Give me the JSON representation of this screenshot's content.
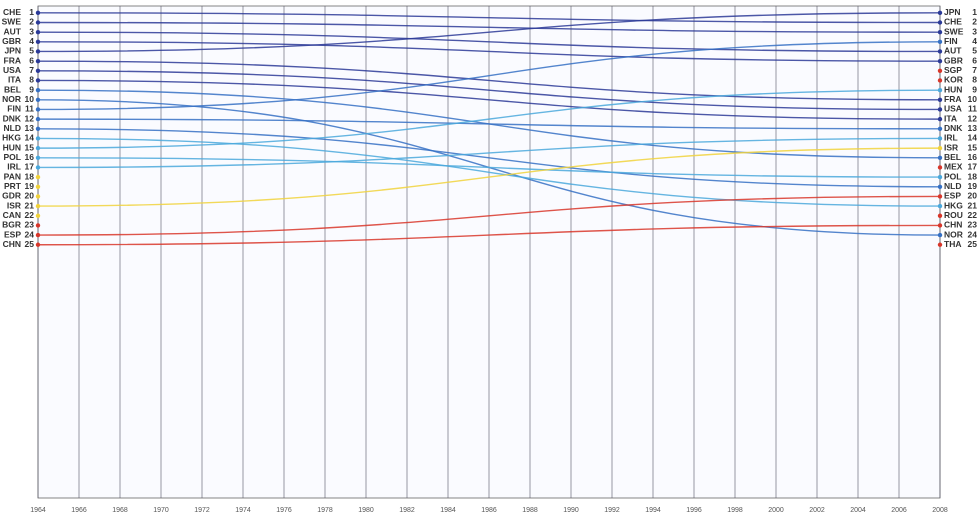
{
  "chart_data": {
    "type": "bump",
    "x": [
      1964,
      2008
    ],
    "xlim": [
      1964,
      2008
    ],
    "xticks": [
      1964,
      1966,
      1968,
      1970,
      1972,
      1974,
      1976,
      1978,
      1980,
      1982,
      1984,
      1986,
      1988,
      1990,
      1992,
      1994,
      1996,
      1998,
      2000,
      2002,
      2004,
      2006,
      2008
    ],
    "ylim": [
      0.5,
      51
    ],
    "series": [
      {
        "name": "CHE",
        "color": "#2b3a98",
        "values": [
          1,
          2
        ]
      },
      {
        "name": "SWE",
        "color": "#2b3a98",
        "values": [
          2,
          3
        ]
      },
      {
        "name": "AUT",
        "color": "#2b3a98",
        "values": [
          3,
          5
        ]
      },
      {
        "name": "GBR",
        "color": "#2b3a98",
        "values": [
          4,
          6
        ]
      },
      {
        "name": "JPN",
        "color": "#2b3a98",
        "values": [
          5,
          1
        ]
      },
      {
        "name": "FRA",
        "color": "#2b3a98",
        "values": [
          6,
          10
        ]
      },
      {
        "name": "USA",
        "color": "#2b3a98",
        "values": [
          7,
          11
        ]
      },
      {
        "name": "ITA",
        "color": "#2b3a98",
        "values": [
          8,
          12
        ]
      },
      {
        "name": "BEL",
        "color": "#3570c4",
        "values": [
          9,
          16
        ]
      },
      {
        "name": "NOR",
        "color": "#3570c4",
        "values": [
          10,
          24
        ]
      },
      {
        "name": "FIN",
        "color": "#3570c4",
        "values": [
          11,
          4
        ]
      },
      {
        "name": "DNK",
        "color": "#3570c4",
        "values": [
          12,
          13
        ]
      },
      {
        "name": "NLD",
        "color": "#3570c4",
        "values": [
          13,
          19
        ]
      },
      {
        "name": "HKG",
        "color": "#4aa8dc",
        "values": [
          14,
          21
        ]
      },
      {
        "name": "HUN",
        "color": "#4aa8dc",
        "values": [
          15,
          9
        ]
      },
      {
        "name": "POL",
        "color": "#4aa8dc",
        "values": [
          16,
          18
        ]
      },
      {
        "name": "IRL",
        "color": "#4aa8dc",
        "values": [
          17,
          14
        ]
      },
      {
        "name": "PAN",
        "color": "#f0d23c",
        "values": [
          18,
          null
        ]
      },
      {
        "name": "PRT",
        "color": "#f0d23c",
        "values": [
          19,
          null
        ]
      },
      {
        "name": "GDR",
        "color": "#f0d23c",
        "values": [
          20,
          null
        ]
      },
      {
        "name": "ISR",
        "color": "#f0d23c",
        "values": [
          21,
          15
        ]
      },
      {
        "name": "CAN",
        "color": "#f0d23c",
        "values": [
          22,
          null
        ]
      },
      {
        "name": "BGR",
        "color": "#d8362a",
        "values": [
          23,
          null
        ]
      },
      {
        "name": "ESP",
        "color": "#d8362a",
        "values": [
          24,
          20
        ]
      },
      {
        "name": "CHN",
        "color": "#d8362a",
        "values": [
          25,
          23
        ]
      },
      {
        "name": "SGP",
        "color": "#d8362a",
        "values": [
          null,
          7
        ]
      },
      {
        "name": "KOR",
        "color": "#d8362a",
        "values": [
          null,
          8
        ]
      },
      {
        "name": "MEX",
        "color": "#d8362a",
        "values": [
          null,
          17
        ]
      },
      {
        "name": "ROU",
        "color": "#d8362a",
        "values": [
          null,
          22
        ]
      },
      {
        "name": "THA",
        "color": "#d8362a",
        "values": [
          null,
          25
        ]
      }
    ],
    "grid": true
  }
}
